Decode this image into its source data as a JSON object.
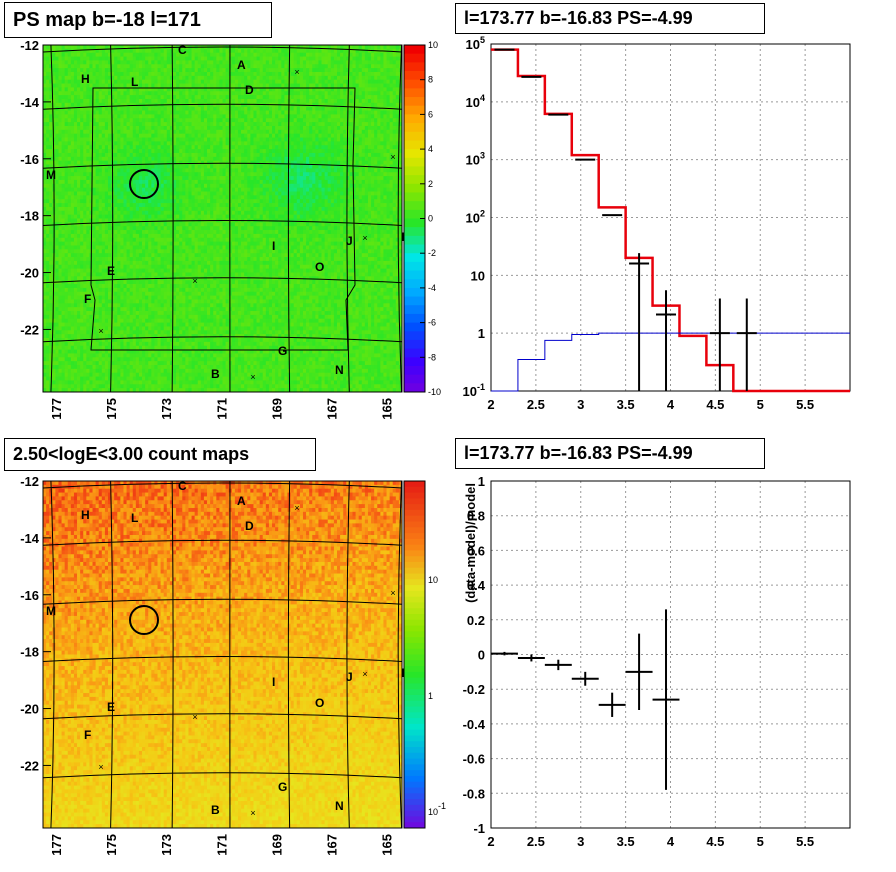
{
  "panels": {
    "tl": {
      "title": "PS map b=-18 l=171"
    },
    "tr": {
      "title": "l=173.77 b=-16.83 PS=-4.99"
    },
    "bl": {
      "title": "2.50<logE<3.00 count maps"
    },
    "br": {
      "title": "l=173.77 b=-16.83 PS=-4.99",
      "ylabel": "(data-model)/model"
    }
  },
  "chart_data": [
    {
      "type": "heatmap",
      "title": "PS map b=-18 l=171",
      "x_ticks": [
        "177",
        "175",
        "173",
        "171",
        "169",
        "167",
        "165"
      ],
      "y_ticks": [
        "-12",
        "-14",
        "-16",
        "-18",
        "-20",
        "-22"
      ],
      "xlim": [
        178,
        164.5
      ],
      "ylim": [
        -23.8,
        -12
      ],
      "colorbar_ticks": [
        "10",
        "8",
        "6",
        "4",
        "2",
        "0",
        "-2",
        "-4",
        "-6",
        "-8",
        "-10"
      ],
      "colorbar_range": [
        -10,
        10
      ],
      "background_value": 0.5,
      "source_labels": [
        {
          "t": "C",
          "l": 172.9,
          "b": -12.15
        },
        {
          "t": "A",
          "l": 171.3,
          "b": -12.7
        },
        {
          "t": "H",
          "l": 176.5,
          "b": -13.1
        },
        {
          "t": "L",
          "l": 174.5,
          "b": -13.2
        },
        {
          "t": "D",
          "l": 171.0,
          "b": -13.5
        },
        {
          "t": "M",
          "l": 178.0,
          "b": -16.4
        },
        {
          "t": "I",
          "l": 170.0,
          "b": -18.7
        },
        {
          "t": "J",
          "l": 166.8,
          "b": -18.6
        },
        {
          "t": "K",
          "l": 165.0,
          "b": -18.5
        },
        {
          "t": "O",
          "l": 168.2,
          "b": -19.6
        },
        {
          "t": "E",
          "l": 175.3,
          "b": -19.7
        },
        {
          "t": "F",
          "l": 176.6,
          "b": -20.6
        },
        {
          "t": "G",
          "l": 169.4,
          "b": -22.5
        },
        {
          "t": "N",
          "l": 167.3,
          "b": -23.2
        },
        {
          "t": "B",
          "l": 172.3,
          "b": -23.4
        }
      ],
      "markers_x": [
        {
          "l": 168.5,
          "b": -12.9
        },
        {
          "l": 165.4,
          "b": -16.0
        },
        {
          "l": 166.0,
          "b": -18.6
        },
        {
          "l": 172.3,
          "b": -20.1
        },
        {
          "l": 175.2,
          "b": -21.8
        },
        {
          "l": 170.6,
          "b": -23.5
        }
      ],
      "circle": {
        "l": 173.77,
        "b": -16.83
      }
    },
    {
      "type": "line",
      "title": "l=173.77 b=-16.83 PS=-4.99",
      "xlim": [
        2,
        6
      ],
      "ylim_log": [
        0.1,
        100000
      ],
      "x_ticks": [
        "2",
        "2.5",
        "3",
        "3.5",
        "4",
        "4.5",
        "5",
        "5.5"
      ],
      "y_ticks": [
        "10^-1",
        "1",
        "10",
        "10^2",
        "10^3",
        "10^4",
        "10^5"
      ],
      "edges": [
        2,
        2.3,
        2.6,
        2.9,
        3.2,
        3.5,
        3.8,
        4.1,
        4.4,
        4.7,
        5.0,
        5.3,
        6.0
      ],
      "series": [
        {
          "color": "#e8000b",
          "values": [
            80000,
            28000,
            6200,
            1200,
            150,
            20,
            3,
            0.9,
            0.28,
            0.1,
            0.1,
            0.1
          ]
        },
        {
          "color": "#000000",
          "values": [
            80000,
            27000,
            6000,
            1000,
            110,
            16,
            2.2,
            0,
            0,
            1,
            1,
            0
          ]
        },
        {
          "color": "#0000cc",
          "values": [
            0.03,
            0.35,
            0.75,
            0.95,
            1,
            1,
            1,
            1,
            1,
            1,
            1,
            1
          ]
        }
      ]
    },
    {
      "type": "heatmap",
      "title": "2.50<logE<3.00 count maps",
      "colorbar_ticks": [
        "10",
        "1",
        "10^-1"
      ],
      "colorbar_scale": "log"
    },
    {
      "type": "scatter",
      "title": "l=173.77 b=-16.83 PS=-4.99",
      "ylabel": "(data-model)/model",
      "xlim": [
        2,
        6
      ],
      "ylim": [
        -1,
        1
      ],
      "x_ticks": [
        "2",
        "2.5",
        "3",
        "3.5",
        "4",
        "4.5",
        "5",
        "5.5"
      ],
      "y_ticks": [
        "-1",
        "-0.8",
        "-0.6",
        "-0.4",
        "-0.2",
        "0",
        "0.2",
        "0.4",
        "0.6",
        "0.8",
        "1"
      ],
      "points": [
        {
          "x": 2.15,
          "y": 0.005,
          "xerr": 0.15,
          "yerr": 0.01
        },
        {
          "x": 2.45,
          "y": -0.02,
          "xerr": 0.15,
          "yerr": 0.02
        },
        {
          "x": 2.75,
          "y": -0.06,
          "xerr": 0.15,
          "yerr": 0.03
        },
        {
          "x": 3.05,
          "y": -0.14,
          "xerr": 0.15,
          "yerr": 0.04
        },
        {
          "x": 3.35,
          "y": -0.29,
          "xerr": 0.15,
          "yerr": 0.07
        },
        {
          "x": 3.65,
          "y": -0.1,
          "xerr": 0.15,
          "yerr": 0.22
        },
        {
          "x": 3.95,
          "y": -0.26,
          "xerr": 0.15,
          "yerr": 0.52
        }
      ]
    }
  ]
}
